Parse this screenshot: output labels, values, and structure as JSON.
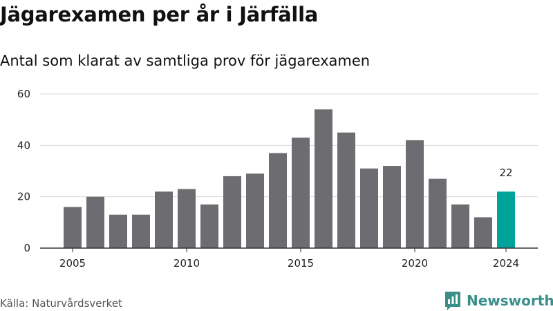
{
  "title": "Jägarexamen per år i Järfälla",
  "subtitle": "Antal som klarat av samtliga prov för jägarexamen",
  "source": "Källa: Naturvårdsverket",
  "brand": {
    "name": "Newsworthy",
    "icon": "newsworthy-logo-icon"
  },
  "colors": {
    "bar": "#6d6c71",
    "highlight": "#00a39a",
    "grid": "#d9d9d9",
    "axis": "#333333",
    "brand": "#3a8f8a"
  },
  "chart_data": {
    "type": "bar",
    "title": "Jägarexamen per år i Järfälla",
    "subtitle": "Antal som klarat av samtliga prov för jägarexamen",
    "xlabel": "",
    "ylabel": "",
    "x": [
      2005,
      2006,
      2007,
      2008,
      2009,
      2010,
      2011,
      2012,
      2013,
      2014,
      2015,
      2016,
      2017,
      2018,
      2019,
      2020,
      2021,
      2022,
      2023,
      2024
    ],
    "values": [
      16,
      20,
      13,
      13,
      22,
      23,
      17,
      28,
      29,
      37,
      43,
      54,
      45,
      31,
      32,
      42,
      27,
      17,
      12,
      22
    ],
    "xticks": [
      2005,
      2010,
      2015,
      2020,
      2024
    ],
    "yticks": [
      0,
      20,
      40,
      60
    ],
    "ylim": [
      0,
      60
    ],
    "grid": true,
    "highlight": {
      "x": 2024,
      "label": "22"
    }
  }
}
